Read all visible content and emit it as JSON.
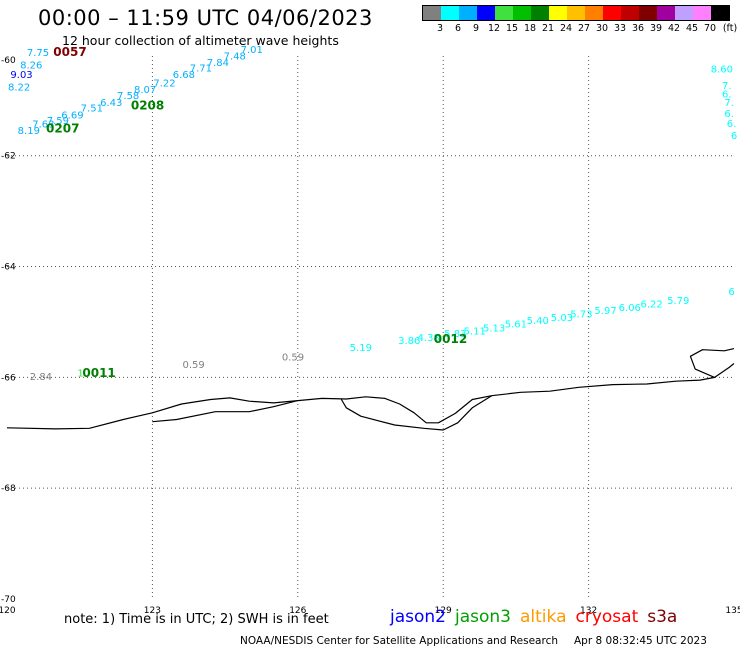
{
  "header": {
    "title": "00:00 – 11:59 UTC 04/06/2023",
    "subtitle": "12 hour collection of altimeter wave heights"
  },
  "colorbar": {
    "colors": [
      "#808080",
      "#00ffff",
      "#00b0ff",
      "#0000ff",
      "#40e040",
      "#00c000",
      "#008000",
      "#ffff00",
      "#ffc000",
      "#ff8000",
      "#ff0000",
      "#c00000",
      "#800000",
      "#a000a0",
      "#c0a0ff",
      "#ff80ff",
      "#000000"
    ],
    "labels": [
      "3",
      "6",
      "9",
      "12",
      "15",
      "18",
      "21",
      "24",
      "27",
      "30",
      "33",
      "36",
      "39",
      "42",
      "45",
      "70"
    ],
    "unit": "(ft)"
  },
  "map": {
    "lon_range": [
      120,
      135
    ],
    "lat_range": [
      -70,
      -60.2
    ],
    "lon_ticks": [
      "120",
      "123",
      "126",
      "129",
      "132",
      "135"
    ],
    "lat_ticks": [
      "-60",
      "-62",
      "-64",
      "-66",
      "-68",
      "-70"
    ],
    "coast": [
      [
        120.0,
        -66.91
      ],
      [
        121.0,
        -66.93
      ],
      [
        121.7,
        -66.92
      ],
      [
        122.4,
        -66.76
      ],
      [
        123.0,
        -66.64
      ],
      [
        123.6,
        -66.48
      ],
      [
        124.2,
        -66.4
      ],
      [
        124.6,
        -66.37
      ],
      [
        125.0,
        -66.43
      ],
      [
        125.5,
        -66.46
      ],
      [
        126.0,
        -66.42
      ],
      [
        126.5,
        -66.38
      ],
      [
        127.0,
        -66.39
      ],
      [
        127.4,
        -66.35
      ],
      [
        127.8,
        -66.38
      ],
      [
        128.1,
        -66.48
      ],
      [
        128.4,
        -66.64
      ],
      [
        128.65,
        -66.82
      ],
      [
        128.9,
        -66.82
      ],
      [
        129.25,
        -66.65
      ],
      [
        129.6,
        -66.4
      ],
      [
        130.0,
        -66.33
      ],
      [
        130.6,
        -66.27
      ],
      [
        131.2,
        -66.25
      ],
      [
        131.8,
        -66.18
      ],
      [
        132.5,
        -66.13
      ],
      [
        133.2,
        -66.12
      ],
      [
        133.8,
        -66.07
      ],
      [
        134.3,
        -66.05
      ],
      [
        134.6,
        -66.0
      ],
      [
        134.9,
        -65.82
      ],
      [
        135.0,
        -65.75
      ]
    ],
    "coast_inner": [
      [
        123.0,
        -66.8
      ],
      [
        123.5,
        -66.76
      ],
      [
        124.3,
        -66.62
      ],
      [
        125.0,
        -66.62
      ],
      [
        125.5,
        -66.53
      ],
      [
        126.0,
        -66.42
      ]
    ],
    "shelf_loop": [
      [
        126.9,
        -66.4
      ],
      [
        127.0,
        -66.55
      ],
      [
        127.3,
        -66.7
      ],
      [
        128.0,
        -66.86
      ],
      [
        128.6,
        -66.92
      ],
      [
        129.0,
        -66.95
      ],
      [
        129.3,
        -66.82
      ],
      [
        129.6,
        -66.55
      ],
      [
        130.0,
        -66.33
      ]
    ],
    "island_loop": [
      [
        134.6,
        -66.0
      ],
      [
        134.2,
        -65.85
      ],
      [
        134.1,
        -65.62
      ],
      [
        134.35,
        -65.5
      ],
      [
        134.8,
        -65.52
      ],
      [
        135.0,
        -65.48
      ]
    ],
    "wave_points": [
      {
        "label": "7.75",
        "lon": 120.64,
        "lat": -60.2,
        "color": "#00b0ff"
      },
      {
        "label": "8.26",
        "lon": 120.5,
        "lat": -60.43,
        "color": "#00b0ff"
      },
      {
        "label": "9.03",
        "lon": 120.3,
        "lat": -60.6,
        "color": "#0000ff"
      },
      {
        "label": "8.22",
        "lon": 120.25,
        "lat": -60.82,
        "color": "#00b0ff"
      },
      {
        "label": "8.19",
        "lon": 120.45,
        "lat": -61.61,
        "color": "#00b0ff"
      },
      {
        "label": "7.63",
        "lon": 120.75,
        "lat": -61.49,
        "color": "#00b0ff"
      },
      {
        "label": "7.59",
        "lon": 121.05,
        "lat": -61.43,
        "color": "#00b0ff"
      },
      {
        "label": "6.69",
        "lon": 121.35,
        "lat": -61.33,
        "color": "#00b0ff"
      },
      {
        "label": "7.51",
        "lon": 121.75,
        "lat": -61.2,
        "color": "#00b0ff"
      },
      {
        "label": "6.43",
        "lon": 122.15,
        "lat": -61.1,
        "color": "#00b0ff"
      },
      {
        "label": "7.58",
        "lon": 122.5,
        "lat": -60.98,
        "color": "#00b0ff"
      },
      {
        "label": "8.07",
        "lon": 122.85,
        "lat": -60.87,
        "color": "#00b0ff"
      },
      {
        "label": "7.22",
        "lon": 123.25,
        "lat": -60.75,
        "color": "#00b0ff"
      },
      {
        "label": "6.68",
        "lon": 123.65,
        "lat": -60.6,
        "color": "#00b0ff"
      },
      {
        "label": "7.71",
        "lon": 124.0,
        "lat": -60.48,
        "color": "#00b0ff"
      },
      {
        "label": "7.84",
        "lon": 124.35,
        "lat": -60.38,
        "color": "#00b0ff"
      },
      {
        "label": "7.48",
        "lon": 124.7,
        "lat": -60.26,
        "color": "#00b0ff"
      },
      {
        "label": "7.01",
        "lon": 125.05,
        "lat": -60.15,
        "color": "#00b0ff"
      },
      {
        "label": "2.84",
        "lon": 120.7,
        "lat": -66.05,
        "color": "#808080"
      },
      {
        "label": "1.",
        "lon": 121.55,
        "lat": -65.98,
        "color": "#40e040"
      },
      {
        "label": "0.59",
        "lon": 123.85,
        "lat": -65.83,
        "color": "#808080"
      },
      {
        "label": "0.59",
        "lon": 125.9,
        "lat": -65.7,
        "color": "#808080"
      },
      {
        "label": "5.19",
        "lon": 127.3,
        "lat": -65.52,
        "color": "#00ffff"
      },
      {
        "label": "3.86",
        "lon": 128.3,
        "lat": -65.4,
        "color": "#00ffff"
      },
      {
        "label": "4.38",
        "lon": 128.7,
        "lat": -65.34,
        "color": "#00ffff"
      },
      {
        "label": "5.83",
        "lon": 129.25,
        "lat": -65.27,
        "color": "#00ffff"
      },
      {
        "label": "5.11",
        "lon": 129.65,
        "lat": -65.23,
        "color": "#00ffff"
      },
      {
        "label": "5.13",
        "lon": 130.05,
        "lat": -65.17,
        "color": "#00ffff"
      },
      {
        "label": "5.61",
        "lon": 130.5,
        "lat": -65.1,
        "color": "#00ffff"
      },
      {
        "label": "5.40",
        "lon": 130.95,
        "lat": -65.04,
        "color": "#00ffff"
      },
      {
        "label": "5.03",
        "lon": 131.45,
        "lat": -64.98,
        "color": "#00ffff"
      },
      {
        "label": "5.73",
        "lon": 131.85,
        "lat": -64.92,
        "color": "#00ffff"
      },
      {
        "label": "5.97",
        "lon": 132.35,
        "lat": -64.86,
        "color": "#00ffff"
      },
      {
        "label": "6.06",
        "lon": 132.85,
        "lat": -64.8,
        "color": "#00ffff"
      },
      {
        "label": "6.22",
        "lon": 133.3,
        "lat": -64.74,
        "color": "#00ffff"
      },
      {
        "label": "5.79",
        "lon": 133.85,
        "lat": -64.68,
        "color": "#00ffff"
      },
      {
        "label": "6",
        "lon": 134.95,
        "lat": -64.51,
        "color": "#00ffff"
      },
      {
        "label": "8.60",
        "lon": 134.75,
        "lat": -60.5,
        "color": "#00ffff"
      },
      {
        "label": "7.",
        "lon": 134.85,
        "lat": -60.8,
        "color": "#00ffff"
      },
      {
        "label": "6.",
        "lon": 134.85,
        "lat": -60.95,
        "color": "#00ffff"
      },
      {
        "label": "7.",
        "lon": 134.9,
        "lat": -61.1,
        "color": "#00ffff"
      },
      {
        "label": "6.",
        "lon": 134.9,
        "lat": -61.3,
        "color": "#00ffff"
      },
      {
        "label": "6.",
        "lon": 134.95,
        "lat": -61.48,
        "color": "#00ffff"
      },
      {
        "label": "6",
        "lon": 135.0,
        "lat": -61.7,
        "color": "#00ffff"
      }
    ],
    "time_labels": [
      {
        "label": "0057",
        "lon": 121.3,
        "lat": -60.2,
        "color": "#800000"
      },
      {
        "label": "0207",
        "lon": 121.15,
        "lat": -61.58,
        "color": "#008000"
      },
      {
        "label": "0208",
        "lon": 122.9,
        "lat": -61.17,
        "color": "#008000"
      },
      {
        "label": "0011",
        "lon": 121.9,
        "lat": -65.99,
        "color": "#008000"
      },
      {
        "label": "0012",
        "lon": 129.15,
        "lat": -65.38,
        "color": "#008000"
      }
    ]
  },
  "footer": {
    "note": "note: 1) Time is in UTC; 2) SWH is in feet",
    "satellites": [
      {
        "name": "jason2",
        "color": "#0000ff"
      },
      {
        "name": "jason3",
        "color": "#00a000"
      },
      {
        "name": "altika",
        "color": "#ff9900"
      },
      {
        "name": "cryosat",
        "color": "#ff0000"
      },
      {
        "name": "s3a",
        "color": "#800000"
      }
    ],
    "credit": "NOAA/NESDIS Center for Satellite Applications and Research",
    "timestamp": "Apr  8 08:32:45 UTC 2023"
  }
}
